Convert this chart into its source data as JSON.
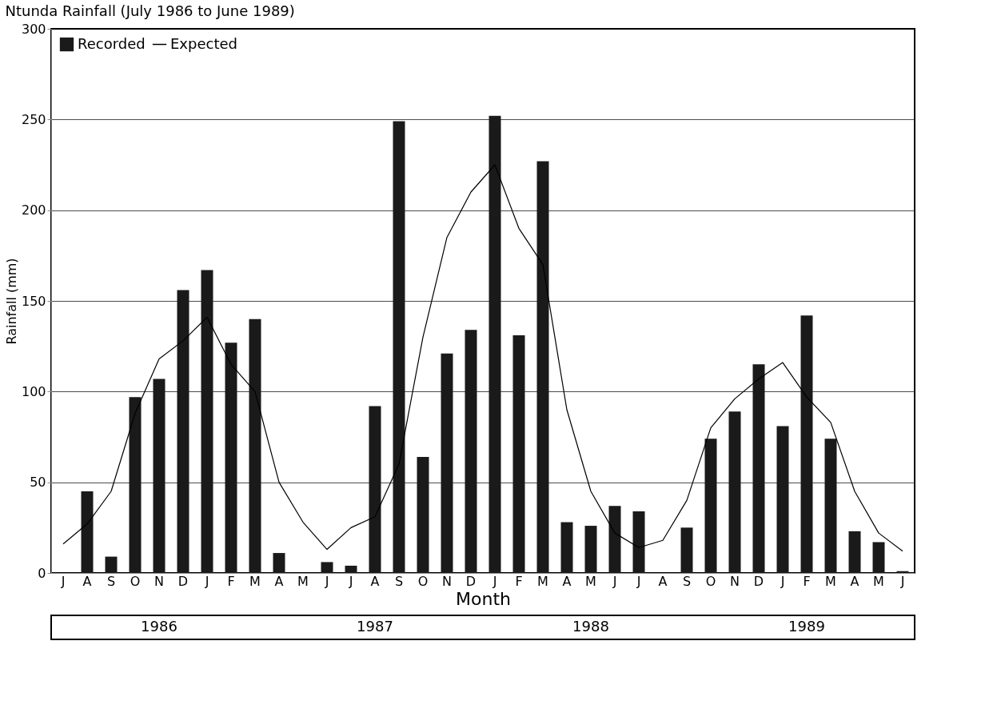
{
  "chart_data": {
    "type": "bar",
    "title": "Ntunda Rainfall (July 1986 to June 1989)",
    "xlabel": "Month",
    "ylabel": "Rainfall (mm)",
    "categories": [
      "J",
      "A",
      "S",
      "O",
      "N",
      "D",
      "J",
      "F",
      "M",
      "A",
      "M",
      "J",
      "J",
      "A",
      "S",
      "O",
      "N",
      "D",
      "J",
      "F",
      "M",
      "A",
      "M",
      "J",
      "J",
      "A",
      "S",
      "O",
      "N",
      "D",
      "J",
      "F",
      "M",
      "A",
      "M",
      "J"
    ],
    "series": [
      {
        "name": "Recorded",
        "color": "#1a1a1a",
        "values": [
          0,
          45,
          9,
          97,
          107,
          156,
          167,
          127,
          140,
          11,
          0,
          6,
          4,
          92,
          249,
          64,
          121,
          134,
          252,
          131,
          227,
          28,
          26,
          37,
          34,
          0,
          25,
          74,
          89,
          115,
          81,
          142,
          74,
          23,
          17,
          1
        ]
      },
      {
        "name": "Expected",
        "type": "line",
        "color": "#000000",
        "values": [
          16,
          27,
          45,
          88,
          118,
          128,
          141,
          115,
          100,
          50,
          28,
          13,
          25,
          31,
          60,
          130,
          185,
          210,
          225,
          190,
          170,
          90,
          45,
          22,
          14,
          18,
          40,
          80,
          96,
          107,
          116,
          97,
          83,
          45,
          22,
          12
        ]
      }
    ],
    "ylim": [
      0,
      300
    ],
    "yticks": [
      0,
      50,
      100,
      150,
      200,
      250,
      300
    ],
    "grid": "y",
    "legend": "top left",
    "annotations": [
      "1986",
      "1987",
      "1988",
      "1989"
    ]
  }
}
